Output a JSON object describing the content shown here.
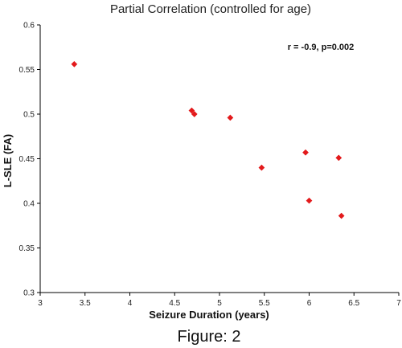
{
  "chart_data": {
    "type": "scatter",
    "title": "Partial Correlation (controlled for age)",
    "xlabel": "Seizure Duration (years)",
    "ylabel": "L-SLE (FA)",
    "xlim": [
      3,
      7
    ],
    "ylim": [
      0.3,
      0.6
    ],
    "xticks": [
      3,
      3.5,
      4,
      4.5,
      5,
      5.5,
      6,
      6.5,
      7
    ],
    "yticks": [
      0.3,
      0.35,
      0.4,
      0.45,
      0.5,
      0.55,
      0.6
    ],
    "marker_color": "#e31a1c",
    "marker_shape": "diamond",
    "grid": false,
    "points": [
      {
        "x": 3.38,
        "y": 0.556
      },
      {
        "x": 4.69,
        "y": 0.504
      },
      {
        "x": 4.72,
        "y": 0.5
      },
      {
        "x": 5.12,
        "y": 0.496
      },
      {
        "x": 5.47,
        "y": 0.44
      },
      {
        "x": 5.96,
        "y": 0.457
      },
      {
        "x": 6.0,
        "y": 0.403
      },
      {
        "x": 6.33,
        "y": 0.451
      },
      {
        "x": 6.36,
        "y": 0.386
      }
    ],
    "annotation": "r = -0.9, p=0.002"
  },
  "caption": "Figure: 2"
}
